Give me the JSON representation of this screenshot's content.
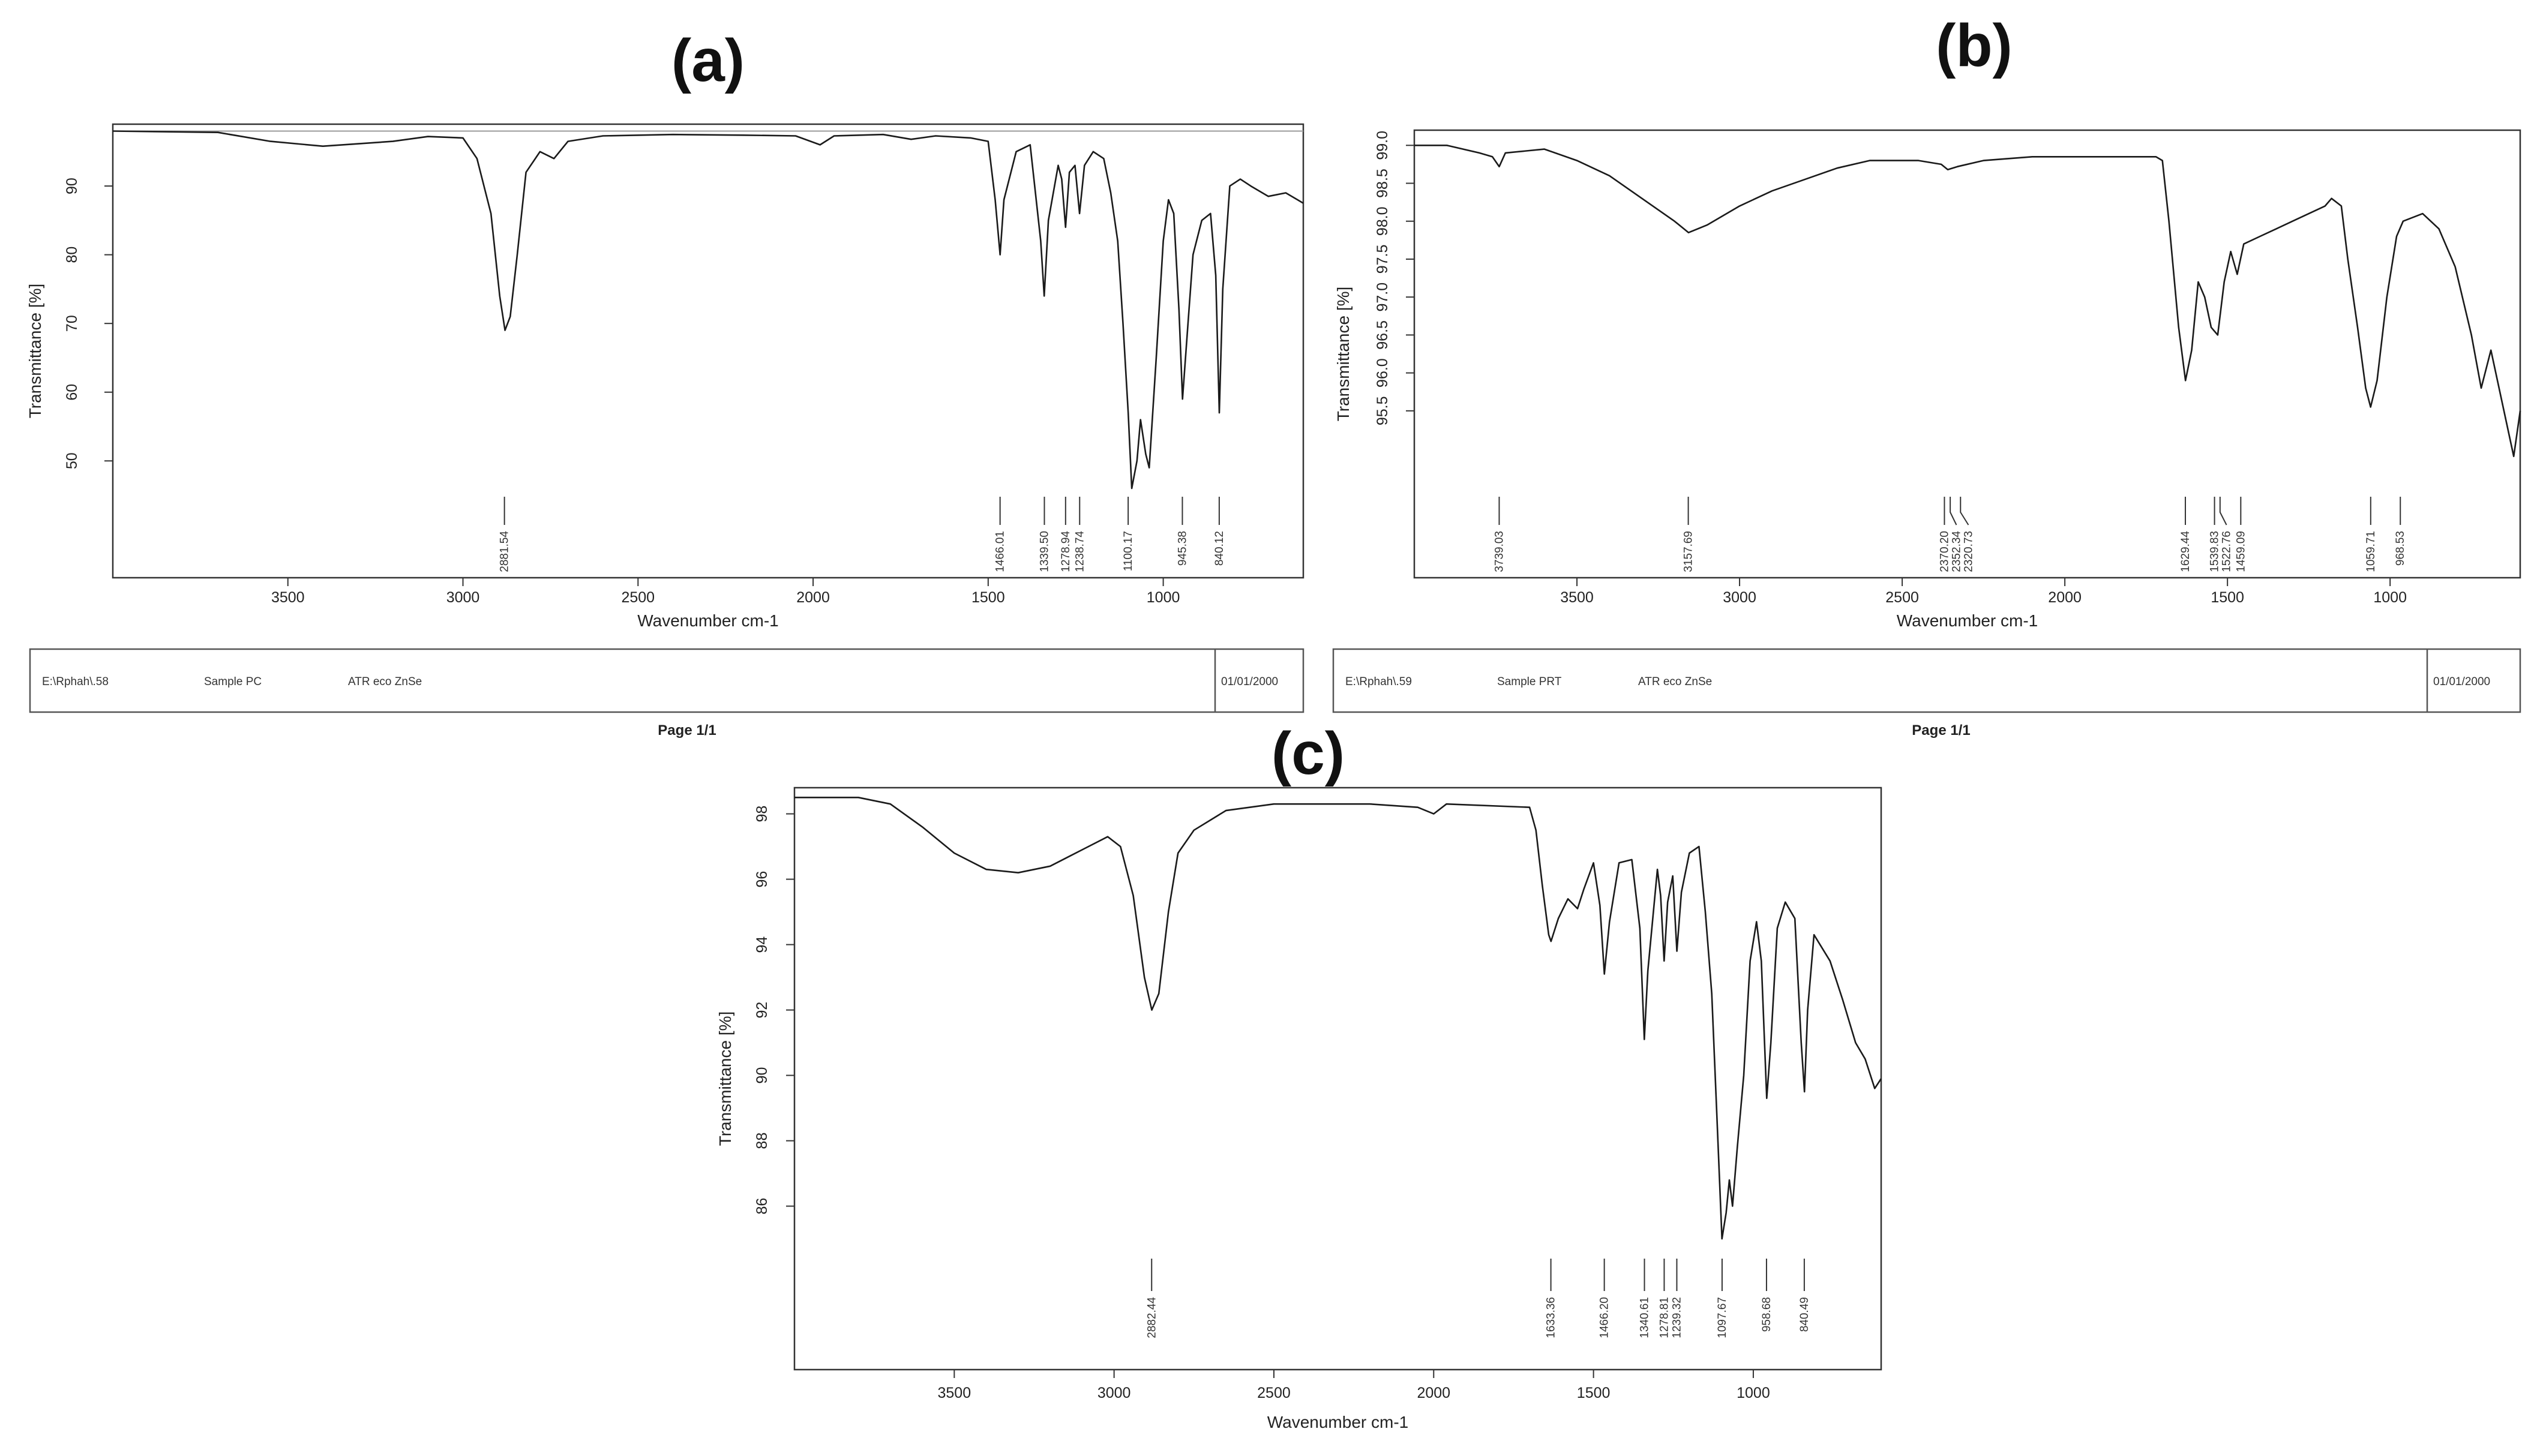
{
  "chart_data": [
    {
      "type": "line",
      "panel_label": "(a)",
      "xlabel": "Wavenumber cm-1",
      "ylabel": "Transmittance [%]",
      "xlim": [
        4000,
        600
      ],
      "ylim": [
        33,
        99
      ],
      "xticks": [
        3500,
        3000,
        2500,
        2000,
        1500,
        1000
      ],
      "yticks": [
        50,
        60,
        70,
        80,
        90
      ],
      "baseline_value": 98,
      "peaks": [
        "2881.54",
        "1466.01",
        "1339.50",
        "1278.94",
        "1238.74",
        "1100.17",
        "945.38",
        "840.12"
      ],
      "series": [
        {
          "values": [
            [
              4000,
              98
            ],
            [
              3700,
              97.8
            ],
            [
              3550,
              96.5
            ],
            [
              3400,
              95.8
            ],
            [
              3200,
              96.5
            ],
            [
              3100,
              97.2
            ],
            [
              3000,
              97
            ],
            [
              2960,
              94
            ],
            [
              2920,
              86
            ],
            [
              2895,
              74
            ],
            [
              2880,
              69
            ],
            [
              2865,
              71
            ],
            [
              2845,
              80
            ],
            [
              2820,
              92
            ],
            [
              2780,
              95
            ],
            [
              2740,
              94
            ],
            [
              2700,
              96.5
            ],
            [
              2600,
              97.3
            ],
            [
              2400,
              97.5
            ],
            [
              2200,
              97.4
            ],
            [
              2050,
              97.3
            ],
            [
              1980,
              96
            ],
            [
              1940,
              97.3
            ],
            [
              1800,
              97.5
            ],
            [
              1720,
              96.8
            ],
            [
              1650,
              97.3
            ],
            [
              1550,
              97
            ],
            [
              1500,
              96.5
            ],
            [
              1480,
              88
            ],
            [
              1466,
              80
            ],
            [
              1455,
              88
            ],
            [
              1420,
              95
            ],
            [
              1380,
              96
            ],
            [
              1350,
              82
            ],
            [
              1340,
              74
            ],
            [
              1328,
              85
            ],
            [
              1300,
              93
            ],
            [
              1290,
              91
            ],
            [
              1279,
              84
            ],
            [
              1268,
              92
            ],
            [
              1252,
              93
            ],
            [
              1239,
              86
            ],
            [
              1225,
              93
            ],
            [
              1200,
              95
            ],
            [
              1170,
              94
            ],
            [
              1150,
              89
            ],
            [
              1130,
              82
            ],
            [
              1115,
              70
            ],
            [
              1100,
              57
            ],
            [
              1090,
              46
            ],
            [
              1075,
              50
            ],
            [
              1065,
              56
            ],
            [
              1050,
              51
            ],
            [
              1040,
              49
            ],
            [
              1020,
              65
            ],
            [
              1000,
              82
            ],
            [
              985,
              88
            ],
            [
              970,
              86
            ],
            [
              955,
              72
            ],
            [
              945,
              59
            ],
            [
              935,
              66
            ],
            [
              915,
              80
            ],
            [
              890,
              85
            ],
            [
              865,
              86
            ],
            [
              850,
              77
            ],
            [
              840,
              57
            ],
            [
              830,
              75
            ],
            [
              810,
              90
            ],
            [
              780,
              91
            ],
            [
              750,
              90
            ],
            [
              700,
              88.5
            ],
            [
              650,
              89
            ],
            [
              600,
              87.5
            ]
          ]
        }
      ]
    },
    {
      "type": "line",
      "panel_label": "(b)",
      "xlabel": "Wavenumber cm-1",
      "ylabel": "Transmittance [%]",
      "xlim": [
        4000,
        600
      ],
      "ylim": [
        93.3,
        99.2
      ],
      "xticks": [
        3500,
        3000,
        2500,
        2000,
        1500,
        1000
      ],
      "yticks": [
        95.5,
        96.0,
        96.5,
        97.0,
        97.5,
        98.0,
        98.5,
        99.0
      ],
      "peaks": [
        "3739.03",
        "3157.69",
        "2370.20",
        "2352.34",
        "2320.73",
        "1629.44",
        "1539.83",
        "1522.76",
        "1459.09",
        "1059.71",
        "968.53"
      ],
      "series": [
        {
          "values": [
            [
              4000,
              99
            ],
            [
              3900,
              99
            ],
            [
              3800,
              98.9
            ],
            [
              3760,
              98.85
            ],
            [
              3739,
              98.72
            ],
            [
              3720,
              98.9
            ],
            [
              3600,
              98.95
            ],
            [
              3500,
              98.8
            ],
            [
              3400,
              98.6
            ],
            [
              3300,
              98.3
            ],
            [
              3200,
              98
            ],
            [
              3157,
              97.85
            ],
            [
              3100,
              97.95
            ],
            [
              3000,
              98.2
            ],
            [
              2900,
              98.4
            ],
            [
              2800,
              98.55
            ],
            [
              2700,
              98.7
            ],
            [
              2600,
              98.8
            ],
            [
              2450,
              98.8
            ],
            [
              2380,
              98.75
            ],
            [
              2360,
              98.68
            ],
            [
              2330,
              98.72
            ],
            [
              2250,
              98.8
            ],
            [
              2100,
              98.85
            ],
            [
              1900,
              98.85
            ],
            [
              1720,
              98.85
            ],
            [
              1700,
              98.8
            ],
            [
              1680,
              98
            ],
            [
              1650,
              96.6
            ],
            [
              1629,
              95.9
            ],
            [
              1610,
              96.3
            ],
            [
              1590,
              97.2
            ],
            [
              1570,
              97
            ],
            [
              1550,
              96.6
            ],
            [
              1530,
              96.5
            ],
            [
              1510,
              97.2
            ],
            [
              1490,
              97.6
            ],
            [
              1470,
              97.3
            ],
            [
              1450,
              97.7
            ],
            [
              1400,
              97.8
            ],
            [
              1350,
              97.9
            ],
            [
              1300,
              98
            ],
            [
              1250,
              98.1
            ],
            [
              1200,
              98.2
            ],
            [
              1180,
              98.3
            ],
            [
              1150,
              98.2
            ],
            [
              1130,
              97.5
            ],
            [
              1100,
              96.6
            ],
            [
              1075,
              95.8
            ],
            [
              1060,
              95.55
            ],
            [
              1040,
              95.9
            ],
            [
              1010,
              97
            ],
            [
              980,
              97.8
            ],
            [
              960,
              98
            ],
            [
              900,
              98.1
            ],
            [
              850,
              97.9
            ],
            [
              800,
              97.4
            ],
            [
              750,
              96.5
            ],
            [
              720,
              95.8
            ],
            [
              690,
              96.3
            ],
            [
              650,
              95.5
            ],
            [
              620,
              94.9
            ],
            [
              600,
              95.5
            ]
          ]
        }
      ]
    },
    {
      "type": "line",
      "panel_label": "(c)",
      "xlabel": "Wavenumber cm-1",
      "ylabel": "Transmittance [%]",
      "xlim": [
        4000,
        600
      ],
      "ylim": [
        81,
        98.8
      ],
      "xticks": [
        3500,
        3000,
        2500,
        2000,
        1500,
        1000
      ],
      "yticks": [
        86,
        88,
        90,
        92,
        94,
        96,
        98
      ],
      "peaks": [
        "2882.44",
        "1633.36",
        "1466.20",
        "1340.61",
        "1278.81",
        "1239.32",
        "1097.67",
        "958.68",
        "840.49"
      ],
      "series": [
        {
          "values": [
            [
              4000,
              98.5
            ],
            [
              3800,
              98.5
            ],
            [
              3700,
              98.3
            ],
            [
              3600,
              97.6
            ],
            [
              3500,
              96.8
            ],
            [
              3400,
              96.3
            ],
            [
              3300,
              96.2
            ],
            [
              3200,
              96.4
            ],
            [
              3100,
              96.9
            ],
            [
              3020,
              97.3
            ],
            [
              2980,
              97
            ],
            [
              2940,
              95.5
            ],
            [
              2905,
              93
            ],
            [
              2882,
              92
            ],
            [
              2860,
              92.5
            ],
            [
              2830,
              95
            ],
            [
              2800,
              96.8
            ],
            [
              2750,
              97.5
            ],
            [
              2650,
              98.1
            ],
            [
              2500,
              98.3
            ],
            [
              2200,
              98.3
            ],
            [
              2050,
              98.2
            ],
            [
              2000,
              98
            ],
            [
              1960,
              98.3
            ],
            [
              1700,
              98.2
            ],
            [
              1680,
              97.5
            ],
            [
              1660,
              95.8
            ],
            [
              1640,
              94.3
            ],
            [
              1633,
              94.1
            ],
            [
              1610,
              94.8
            ],
            [
              1580,
              95.4
            ],
            [
              1550,
              95.1
            ],
            [
              1530,
              95.7
            ],
            [
              1500,
              96.5
            ],
            [
              1480,
              95.2
            ],
            [
              1466,
              93.1
            ],
            [
              1450,
              94.7
            ],
            [
              1420,
              96.5
            ],
            [
              1380,
              96.6
            ],
            [
              1355,
              94.5
            ],
            [
              1341,
              91.1
            ],
            [
              1330,
              93.2
            ],
            [
              1300,
              96.3
            ],
            [
              1290,
              95.5
            ],
            [
              1279,
              93.5
            ],
            [
              1268,
              95.3
            ],
            [
              1252,
              96.1
            ],
            [
              1239,
              93.8
            ],
            [
              1225,
              95.6
            ],
            [
              1200,
              96.8
            ],
            [
              1170,
              97
            ],
            [
              1150,
              95
            ],
            [
              1130,
              92.5
            ],
            [
              1115,
              89
            ],
            [
              1098,
              85
            ],
            [
              1085,
              85.8
            ],
            [
              1075,
              86.8
            ],
            [
              1065,
              86
            ],
            [
              1050,
              87.8
            ],
            [
              1030,
              90
            ],
            [
              1010,
              93.5
            ],
            [
              990,
              94.7
            ],
            [
              975,
              93.5
            ],
            [
              958,
              89.3
            ],
            [
              945,
              91
            ],
            [
              925,
              94.5
            ],
            [
              900,
              95.3
            ],
            [
              870,
              94.8
            ],
            [
              850,
              91
            ],
            [
              840,
              89.5
            ],
            [
              830,
              92
            ],
            [
              810,
              94.3
            ],
            [
              760,
              93.5
            ],
            [
              720,
              92.3
            ],
            [
              680,
              91
            ],
            [
              650,
              90.5
            ],
            [
              620,
              89.6
            ],
            [
              600,
              89.9
            ]
          ]
        }
      ]
    }
  ],
  "footers": [
    {
      "file": "E:\\Rphah\\.58",
      "sample": "Sample PC",
      "method": "ATR eco ZnSe",
      "date": "01/01/2000",
      "page": "Page 1/1"
    },
    {
      "file": "E:\\Rphah\\.59",
      "sample": "Sample PRT",
      "method": "ATR eco ZnSe",
      "date": "01/01/2000",
      "page": "Page 1/1"
    }
  ]
}
